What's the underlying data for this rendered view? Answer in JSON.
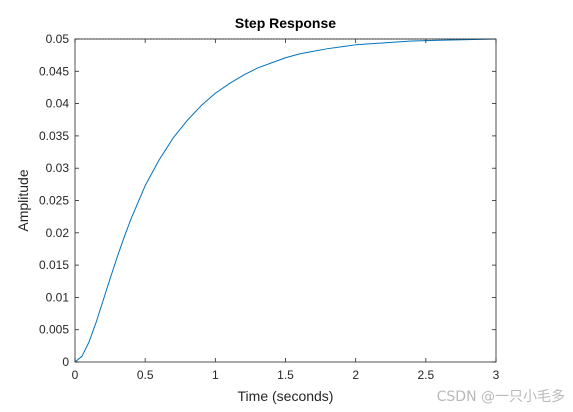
{
  "chart_data": {
    "type": "line",
    "title": "Step Response",
    "xlabel": "Time (seconds)",
    "ylabel": "Amplitude",
    "xlim": [
      0,
      3
    ],
    "ylim": [
      0,
      0.05
    ],
    "xticks": [
      0,
      0.5,
      1,
      1.5,
      2,
      2.5,
      3
    ],
    "xtick_labels": [
      "0",
      "0.5",
      "1",
      "1.5",
      "2",
      "2.5",
      "3"
    ],
    "yticks": [
      0,
      0.005,
      0.01,
      0.015,
      0.02,
      0.025,
      0.03,
      0.035,
      0.04,
      0.045,
      0.05
    ],
    "ytick_labels": [
      "0",
      "0.005",
      "0.01",
      "0.015",
      "0.02",
      "0.025",
      "0.03",
      "0.035",
      "0.04",
      "0.045",
      "0.05"
    ],
    "grid": false,
    "series": [
      {
        "x": [
          0,
          0.05,
          0.1,
          0.15,
          0.2,
          0.25,
          0.3,
          0.35,
          0.4,
          0.5,
          0.6,
          0.7,
          0.8,
          0.9,
          1.0,
          1.1,
          1.2,
          1.3,
          1.4,
          1.5,
          1.6,
          1.7,
          1.8,
          1.9,
          2.0,
          2.2,
          2.4,
          2.6,
          2.8,
          3.0
        ],
        "y": [
          0,
          0.0009,
          0.0031,
          0.0061,
          0.0095,
          0.0129,
          0.0162,
          0.0193,
          0.0222,
          0.0273,
          0.0313,
          0.0347,
          0.0374,
          0.0397,
          0.0416,
          0.0431,
          0.0444,
          0.0455,
          0.0463,
          0.0471,
          0.0477,
          0.0481,
          0.0485,
          0.0488,
          0.0491,
          0.0494,
          0.0497,
          0.0498,
          0.0499,
          0.05
        ]
      }
    ],
    "reference_line": {
      "y": 0.05,
      "style": "dotted"
    },
    "colors": {
      "line": "#0072bd",
      "axes": "#262626",
      "reference": "#000000"
    }
  },
  "watermark": "CSDN @一只小毛多"
}
